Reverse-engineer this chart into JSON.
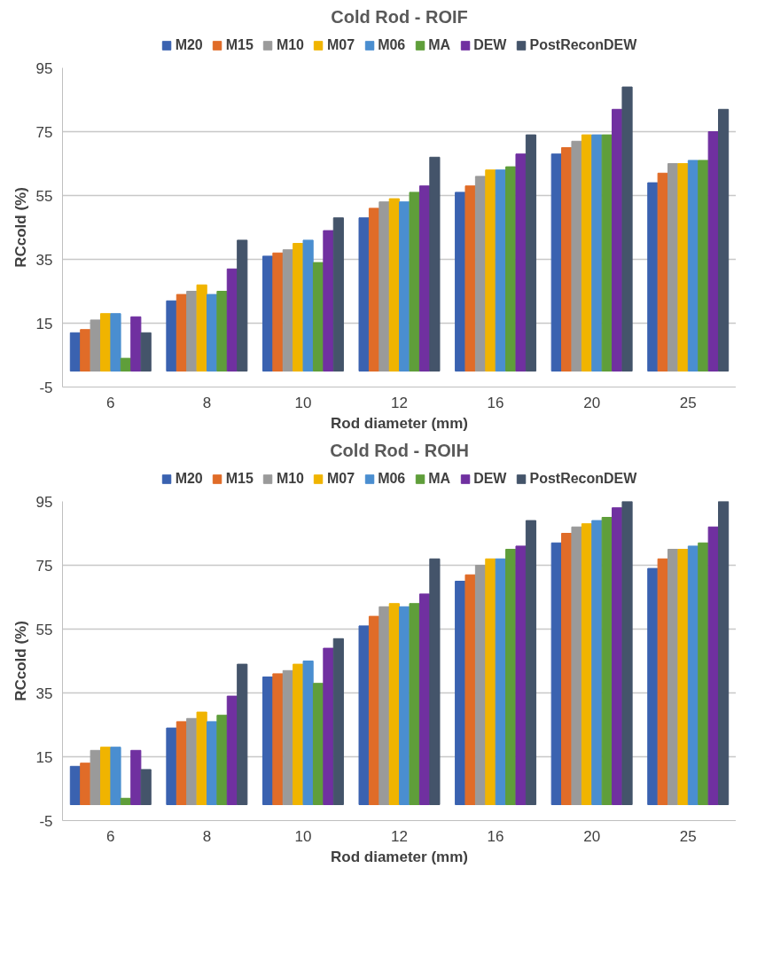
{
  "chart_data": [
    {
      "type": "bar",
      "title": "Cold Rod - ROIF",
      "xlabel": "Rod diameter (mm)",
      "ylabel": "RCcold (%)",
      "categories": [
        "6",
        "8",
        "10",
        "12",
        "16",
        "20",
        "25"
      ],
      "ylim": [
        -5,
        95
      ],
      "yticks": [
        -5,
        15,
        35,
        55,
        75,
        95
      ],
      "grid": "y",
      "legend": "top",
      "series": [
        {
          "name": "M20",
          "color": "#3a62b0",
          "values": [
            12,
            22,
            36,
            48,
            56,
            68,
            59
          ]
        },
        {
          "name": "M15",
          "color": "#e06c28",
          "values": [
            13,
            24,
            37,
            51,
            58,
            70,
            62
          ]
        },
        {
          "name": "M10",
          "color": "#9a9a9a",
          "values": [
            16,
            25,
            38,
            53,
            61,
            72,
            65
          ]
        },
        {
          "name": "M07",
          "color": "#f0b400",
          "values": [
            18,
            27,
            40,
            54,
            63,
            74,
            65
          ]
        },
        {
          "name": "M06",
          "color": "#4a8ed0",
          "values": [
            18,
            24,
            41,
            53,
            63,
            74,
            66
          ]
        },
        {
          "name": "MA",
          "color": "#5f9e3a",
          "values": [
            4,
            25,
            34,
            56,
            64,
            74,
            66
          ]
        },
        {
          "name": "DEW",
          "color": "#7030a0",
          "values": [
            17,
            32,
            44,
            58,
            68,
            82,
            75
          ]
        },
        {
          "name": "PostReconDEW",
          "color": "#44546a",
          "values": [
            12,
            41,
            48,
            67,
            74,
            89,
            82
          ]
        }
      ]
    },
    {
      "type": "bar",
      "title": "Cold Rod - ROIH",
      "xlabel": "Rod diameter (mm)",
      "ylabel": "RCcold (%)",
      "categories": [
        "6",
        "8",
        "10",
        "12",
        "16",
        "20",
        "25"
      ],
      "ylim": [
        -5,
        95
      ],
      "yticks": [
        -5,
        15,
        35,
        55,
        75,
        95
      ],
      "grid": "y",
      "legend": "top",
      "series": [
        {
          "name": "M20",
          "color": "#3a62b0",
          "values": [
            12,
            24,
            40,
            56,
            70,
            82,
            74
          ]
        },
        {
          "name": "M15",
          "color": "#e06c28",
          "values": [
            13,
            26,
            41,
            59,
            72,
            85,
            77
          ]
        },
        {
          "name": "M10",
          "color": "#9a9a9a",
          "values": [
            17,
            27,
            42,
            62,
            75,
            87,
            80
          ]
        },
        {
          "name": "M07",
          "color": "#f0b400",
          "values": [
            18,
            29,
            44,
            63,
            77,
            88,
            80
          ]
        },
        {
          "name": "M06",
          "color": "#4a8ed0",
          "values": [
            18,
            26,
            45,
            62,
            77,
            89,
            81
          ]
        },
        {
          "name": "MA",
          "color": "#5f9e3a",
          "values": [
            2,
            28,
            38,
            63,
            80,
            90,
            82
          ]
        },
        {
          "name": "DEW",
          "color": "#7030a0",
          "values": [
            17,
            34,
            49,
            66,
            81,
            93,
            87
          ]
        },
        {
          "name": "PostReconDEW",
          "color": "#44546a",
          "values": [
            11,
            44,
            52,
            77,
            89,
            95,
            95
          ]
        }
      ]
    }
  ]
}
